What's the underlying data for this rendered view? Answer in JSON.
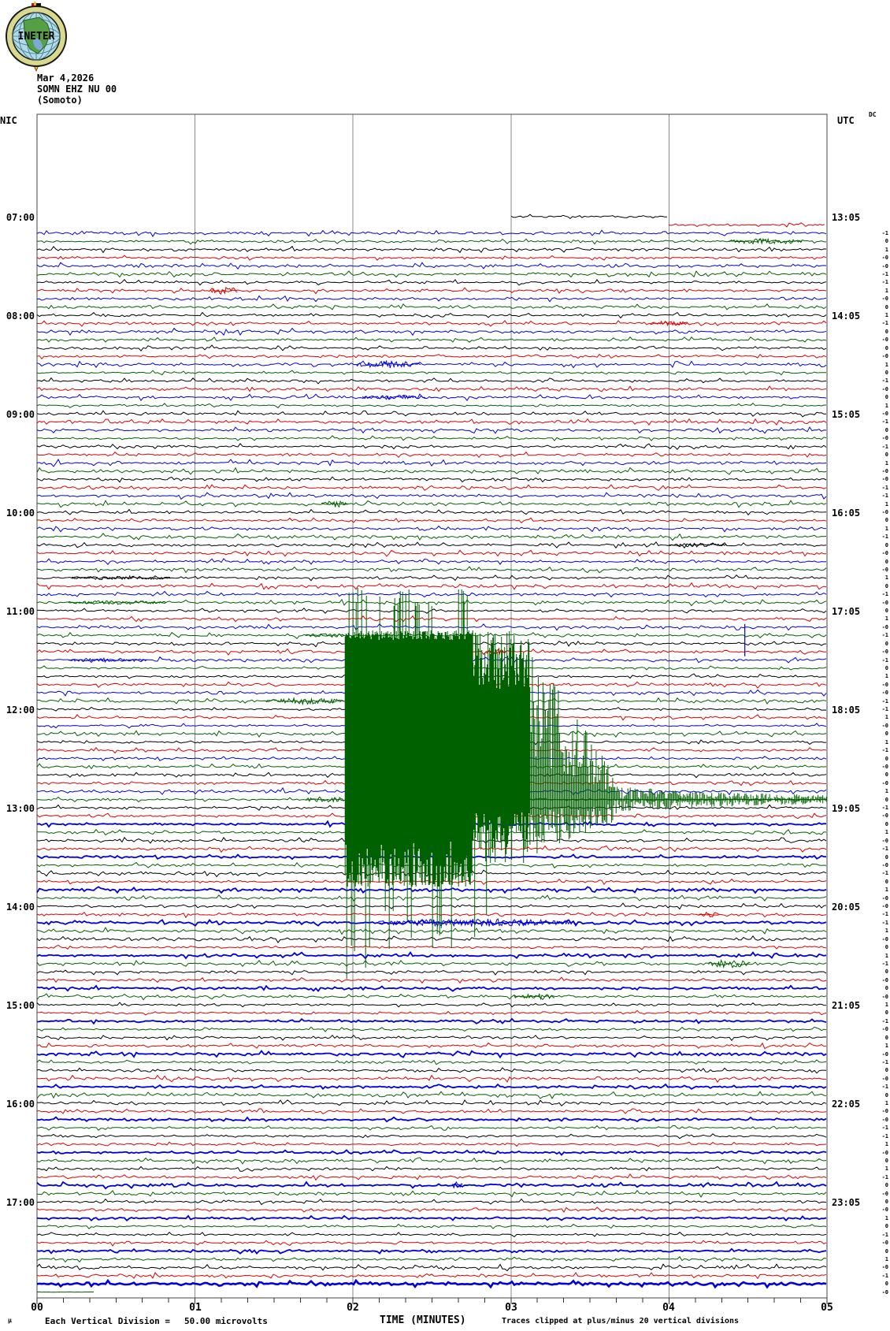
{
  "header": {
    "logo_text": "INETER",
    "date": "Mar 4,2026",
    "station_line": "SOMN EHZ NU 00",
    "location": "(Somoto)"
  },
  "axis": {
    "left_timezone": "NIC",
    "right_timezone": "UTC",
    "dc_header": "DC",
    "left_times": [
      "07:00",
      "08:00",
      "09:00",
      "10:00",
      "11:00",
      "12:00",
      "13:00",
      "14:00",
      "15:00",
      "16:00",
      "17:00"
    ],
    "right_times": [
      "13:05",
      "14:05",
      "15:05",
      "16:05",
      "17:05",
      "18:05",
      "19:05",
      "20:05",
      "21:05",
      "22:05",
      "23:05"
    ],
    "x_tick_labels": [
      "00",
      "01",
      "02",
      "03",
      "04",
      "05"
    ],
    "x_title": "TIME (MINUTES)",
    "clip_note": "Traces clipped at plus/minus 20 vertical divisions",
    "scale_note_prefix": "Each Vertical Division =",
    "scale_note_value": "50.00 microvolts",
    "micro_mark": "µ"
  },
  "chart_data": {
    "type": "line",
    "title": "INETER helicorder SOMN EHZ NU 00 (Somoto) Mar 4,2026",
    "station": "SOMN",
    "channel": "EHZ",
    "network": "NU",
    "location_code": "00",
    "site": "Somoto",
    "date": "Mar 4,2026",
    "left_time_basis": "NIC local",
    "right_time_basis": "UTC",
    "minutes_per_line": 5,
    "lines_per_hour": 12,
    "total_lines": 132,
    "first_line_local": "07:00",
    "first_line_utc": "13:05",
    "last_line_local": "17:55",
    "trace_colors": [
      "#000000",
      "#dd0000",
      "#0000dd",
      "#006100"
    ],
    "grid_color": "#8a8a8a",
    "border_color": "#444444",
    "first_trace_partial": {
      "row": 0,
      "start_minute": 3.0,
      "end_minute": 4.0
    },
    "second_trace_partial": {
      "row": 1,
      "start_minute": 4.0,
      "end_minute": 5.0
    },
    "last_trace_partial": {
      "row": 131,
      "start_minute": 0.0,
      "end_minute": 0.36
    },
    "event": {
      "description": "Large clipped earthquake burst recorded on green trace",
      "onset_local_time": "11:55",
      "onset_utc_time": "18:00",
      "onset_minute": 1.95,
      "onset_row": 59,
      "coda_row": 71,
      "clip_divisions": 20,
      "core_minutes": [
        1.95,
        2.76
      ],
      "mid_minutes": [
        2.76,
        3.12
      ],
      "taper_minutes": [
        3.12,
        3.65
      ],
      "coda_minutes": [
        3.65,
        5.0
      ]
    },
    "bursts": [
      {
        "row": 3,
        "m0": 4.38,
        "m1": 4.85,
        "amp": 3.5
      },
      {
        "row": 9,
        "m0": 1.1,
        "m1": 1.27,
        "amp": 5
      },
      {
        "row": 13,
        "m0": 3.88,
        "m1": 4.12,
        "amp": 3
      },
      {
        "row": 18,
        "m0": 2.02,
        "m1": 2.43,
        "amp": 4.5
      },
      {
        "row": 22,
        "m0": 2.06,
        "m1": 2.46,
        "amp": 3
      },
      {
        "row": 35,
        "m0": 1.8,
        "m1": 1.97,
        "amp": 4
      },
      {
        "row": 40,
        "m0": 4.0,
        "m1": 4.36,
        "amp": 2.5
      },
      {
        "row": 44,
        "m0": 0.22,
        "m1": 0.85,
        "amp": 2.5
      },
      {
        "row": 47,
        "m0": 0.2,
        "m1": 0.82,
        "amp": 2.5
      },
      {
        "row": 51,
        "m0": 1.7,
        "m1": 1.95,
        "amp": 2.5
      },
      {
        "row": 53,
        "m0": 2.17,
        "m1": 2.42,
        "amp": 5
      },
      {
        "row": 53,
        "m0": 2.84,
        "m1": 2.97,
        "amp": 3.5
      },
      {
        "row": 54,
        "m0": 0.2,
        "m1": 0.7,
        "amp": 2.5
      },
      {
        "row": 59,
        "m0": 1.45,
        "m1": 1.95,
        "amp": 4
      },
      {
        "row": 71,
        "m0": 1.7,
        "m1": 1.95,
        "amp": 4
      },
      {
        "row": 85,
        "m0": 4.18,
        "m1": 4.32,
        "amp": 4
      },
      {
        "row": 86,
        "m0": 2.16,
        "m1": 3.42,
        "amp": 5
      },
      {
        "row": 91,
        "m0": 4.25,
        "m1": 4.52,
        "amp": 5
      },
      {
        "row": 95,
        "m0": 3.02,
        "m1": 3.28,
        "amp": 3.5
      },
      {
        "row": 118,
        "m0": 2.63,
        "m1": 2.7,
        "amp": 6
      }
    ],
    "spikes": [
      {
        "row": 50,
        "minute": 4.48,
        "up": 4,
        "down": 37
      }
    ],
    "thick_blue_from_row": 74,
    "extra_thick_rows": [
      130
    ],
    "dc_values_start_row": 2,
    "dc_values": [
      "-1",
      "0",
      "1",
      "-0",
      "-0",
      "-1",
      "-1",
      "1",
      "-0",
      "0",
      "1",
      "-1",
      "0",
      "-0",
      "0",
      "-0",
      "1",
      "0",
      "-1",
      "-0",
      "0",
      "1",
      "-0",
      "-1",
      "0",
      "-0",
      "-1",
      "0",
      "1",
      "-0",
      "-0",
      "-1",
      "-1",
      "1",
      "-0",
      "0",
      "1",
      "-1",
      "0",
      "-0",
      "0",
      "-0",
      "1",
      "0",
      "-1",
      "-0",
      "0",
      "1",
      "-0",
      "-1",
      "0",
      "-0",
      "-1",
      "0",
      "1",
      "-0",
      "-0",
      "-1",
      "-1",
      "1",
      "-0",
      "0",
      "1",
      "-1",
      "0",
      "-0",
      "0",
      "-0",
      "1",
      "0",
      "-1",
      "-0",
      "0",
      "1",
      "-0",
      "-1",
      "0",
      "-0",
      "-1",
      "0",
      "1",
      "-0",
      "-0",
      "-1",
      "-1",
      "1",
      "-0",
      "0",
      "1",
      "-1",
      "0",
      "-0",
      "0",
      "-0",
      "1",
      "0",
      "-1",
      "-0",
      "0",
      "1",
      "-0",
      "-1",
      "0",
      "-0",
      "-1",
      "0",
      "1",
      "-0",
      "-0",
      "-1",
      "-1",
      "1",
      "-0",
      "0",
      "1",
      "-1",
      "0",
      "-0",
      "0",
      "-0",
      "1",
      "0",
      "-1",
      "-0",
      "0",
      "1",
      "-0",
      "-1",
      "0",
      "-0"
    ]
  }
}
